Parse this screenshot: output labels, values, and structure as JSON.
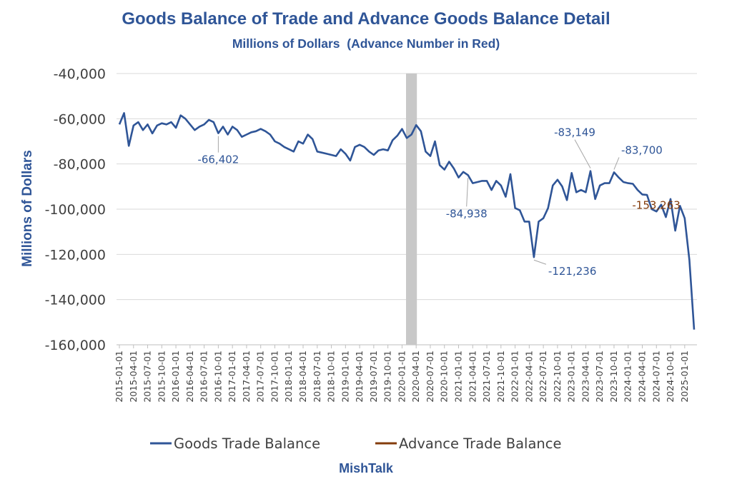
{
  "chart_data": {
    "type": "line",
    "title": "Goods Balance of Trade and Advance Goods Balance Detail",
    "subtitle": "Millions of Dollars  (Advance Number in Red)",
    "ylabel": "Millions of Dollars",
    "xlabel": "",
    "ylim": [
      -160000,
      -40000
    ],
    "yticks": [
      -40000,
      -60000,
      -80000,
      -100000,
      -120000,
      -140000,
      -160000
    ],
    "ytick_labels": [
      "-40,000",
      "-60,000",
      "-80,000",
      "-100,000",
      "-120,000",
      "-140,000",
      "-160,000"
    ],
    "xtick_labels": [
      "2015-01-01",
      "2015-04-01",
      "2015-07-01",
      "2015-10-01",
      "2016-01-01",
      "2016-04-01",
      "2016-07-01",
      "2016-10-01",
      "2017-01-01",
      "2017-04-01",
      "2017-07-01",
      "2017-10-01",
      "2018-01-01",
      "2018-04-01",
      "2018-07-01",
      "2018-10-01",
      "2019-01-01",
      "2019-04-01",
      "2019-07-01",
      "2019-10-01",
      "2020-01-01",
      "2020-04-01",
      "2020-07-01",
      "2020-10-01",
      "2021-01-01",
      "2021-04-01",
      "2021-07-01",
      "2021-10-01",
      "2022-01-01",
      "2022-04-01",
      "2022-07-01",
      "2022-10-01",
      "2023-01-01",
      "2023-04-01",
      "2023-07-01",
      "2023-10-01",
      "2024-01-01",
      "2024-04-01",
      "2024-07-01",
      "2024-10-01",
      "2025-01-01"
    ],
    "grid": true,
    "legend_position": "bottom",
    "shaded_band": {
      "from": "2020-02-01",
      "to": "2020-04-01",
      "color": "#c8c8c8"
    },
    "series": [
      {
        "name": "Goods Trade Balance",
        "color": "#2f5597",
        "start": "2015-01-01",
        "frequency": "monthly",
        "values": [
          -62500,
          -57500,
          -72000,
          -63000,
          -61500,
          -65000,
          -62500,
          -66500,
          -63000,
          -62000,
          -62500,
          -61500,
          -64000,
          -58500,
          -60000,
          -62500,
          -65000,
          -63500,
          -62500,
          -60500,
          -61500,
          -66402,
          -63500,
          -67000,
          -63500,
          -65000,
          -68000,
          -67000,
          -66000,
          -65500,
          -64500,
          -65500,
          -67000,
          -70000,
          -71000,
          -72500,
          -73500,
          -74500,
          -70000,
          -71000,
          -67000,
          -69000,
          -74500,
          -75000,
          -75500,
          -76000,
          -76500,
          -73500,
          -75500,
          -78500,
          -72500,
          -71500,
          -72500,
          -74500,
          -76000,
          -74000,
          -73500,
          -74000,
          -69500,
          -67500,
          -64500,
          -68500,
          -67000,
          -62800,
          -65500,
          -74500,
          -76500,
          -70000,
          -80500,
          -82500,
          -79000,
          -82000,
          -86000,
          -83500,
          -84938,
          -88500,
          -88000,
          -87500,
          -87500,
          -91500,
          -87500,
          -89500,
          -94500,
          -84500,
          -99500,
          -100500,
          -105500,
          -105500,
          -121236,
          -105500,
          -104000,
          -99500,
          -89500,
          -87000,
          -90000,
          -96000,
          -84000,
          -92500,
          -91500,
          -92500,
          -83149,
          -95500,
          -89500,
          -88500,
          -88500,
          -83700,
          -86000,
          -88000,
          -88500,
          -88800,
          -91500,
          -93500,
          -93700,
          -100000,
          -101000,
          -98000,
          -103500,
          -95500,
          -109500,
          -98500,
          -104000,
          -122500,
          -153263
        ]
      },
      {
        "name": "Advance Trade Balance",
        "color": "#843c0c",
        "values": []
      }
    ],
    "annotations": [
      {
        "text": "-66,402",
        "x": "2016-10-01",
        "color": "#2f5597"
      },
      {
        "text": "-84,938",
        "x": "2021-03-01",
        "color": "#2f5597"
      },
      {
        "text": "-121,236",
        "x": "2022-05-01",
        "color": "#2f5597"
      },
      {
        "text": "-83,149",
        "x": "2023-05-01",
        "color": "#2f5597"
      },
      {
        "text": "-83,700",
        "x": "2023-10-01",
        "color": "#2f5597"
      },
      {
        "text": "-153,263",
        "x": "2025-01-01",
        "color": "#843c0c"
      }
    ]
  },
  "footer": {
    "source": "MishTalk"
  },
  "colors": {
    "title": "#2f5597",
    "grid": "#d9d9d9",
    "axis": "#bfbfbf",
    "text": "#404040"
  }
}
